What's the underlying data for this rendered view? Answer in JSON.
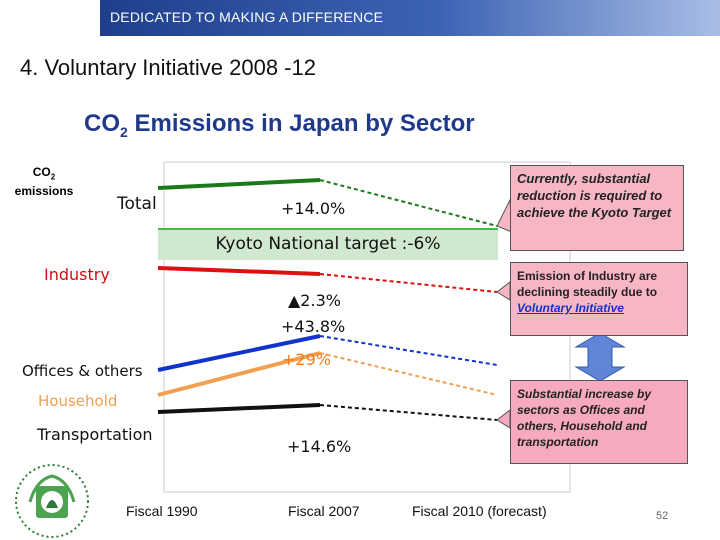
{
  "header": {
    "banner": "DEDICATED TO MAKING A DIFFERENCE"
  },
  "slide": {
    "title": "4. Voluntary Initiative  2008 -12",
    "page_number": "52"
  },
  "chart_data": {
    "type": "line",
    "title_prefix": "CO",
    "title_sub": "2",
    "title_suffix": " Emissions in Japan by Sector",
    "ylabel_prefix": "CO",
    "ylabel_sub": "2",
    "ylabel_suffix": "emissions",
    "x_labels": [
      "Fiscal 1990",
      "Fiscal 2007",
      "Fiscal 2010 (forecast)"
    ],
    "series": [
      {
        "name": "Total",
        "color": "#1a7a1a",
        "change": "+14.0%"
      },
      {
        "name": "Industry",
        "color": "#dd1111",
        "change": "▲2.3%"
      },
      {
        "name": "Offices & others",
        "color": "#1133cc",
        "change": "+43.8%"
      },
      {
        "name": "Household",
        "color": "#f0a050",
        "change": "+29%"
      },
      {
        "name": "Transportation",
        "color": "#111111",
        "change": "+14.6%"
      }
    ],
    "target_label": "Kyoto National target :-6%"
  },
  "callouts": {
    "kyoto": "Currently, substantial reduction is required to achieve the Kyoto Target",
    "industry_lines": [
      "Emission of Industry are",
      "declining  steadily due to"
    ],
    "industry_link": "Voluntary Initiative",
    "sectors": "Substantial increase by sectors as Offices and others, Household and transportation"
  }
}
